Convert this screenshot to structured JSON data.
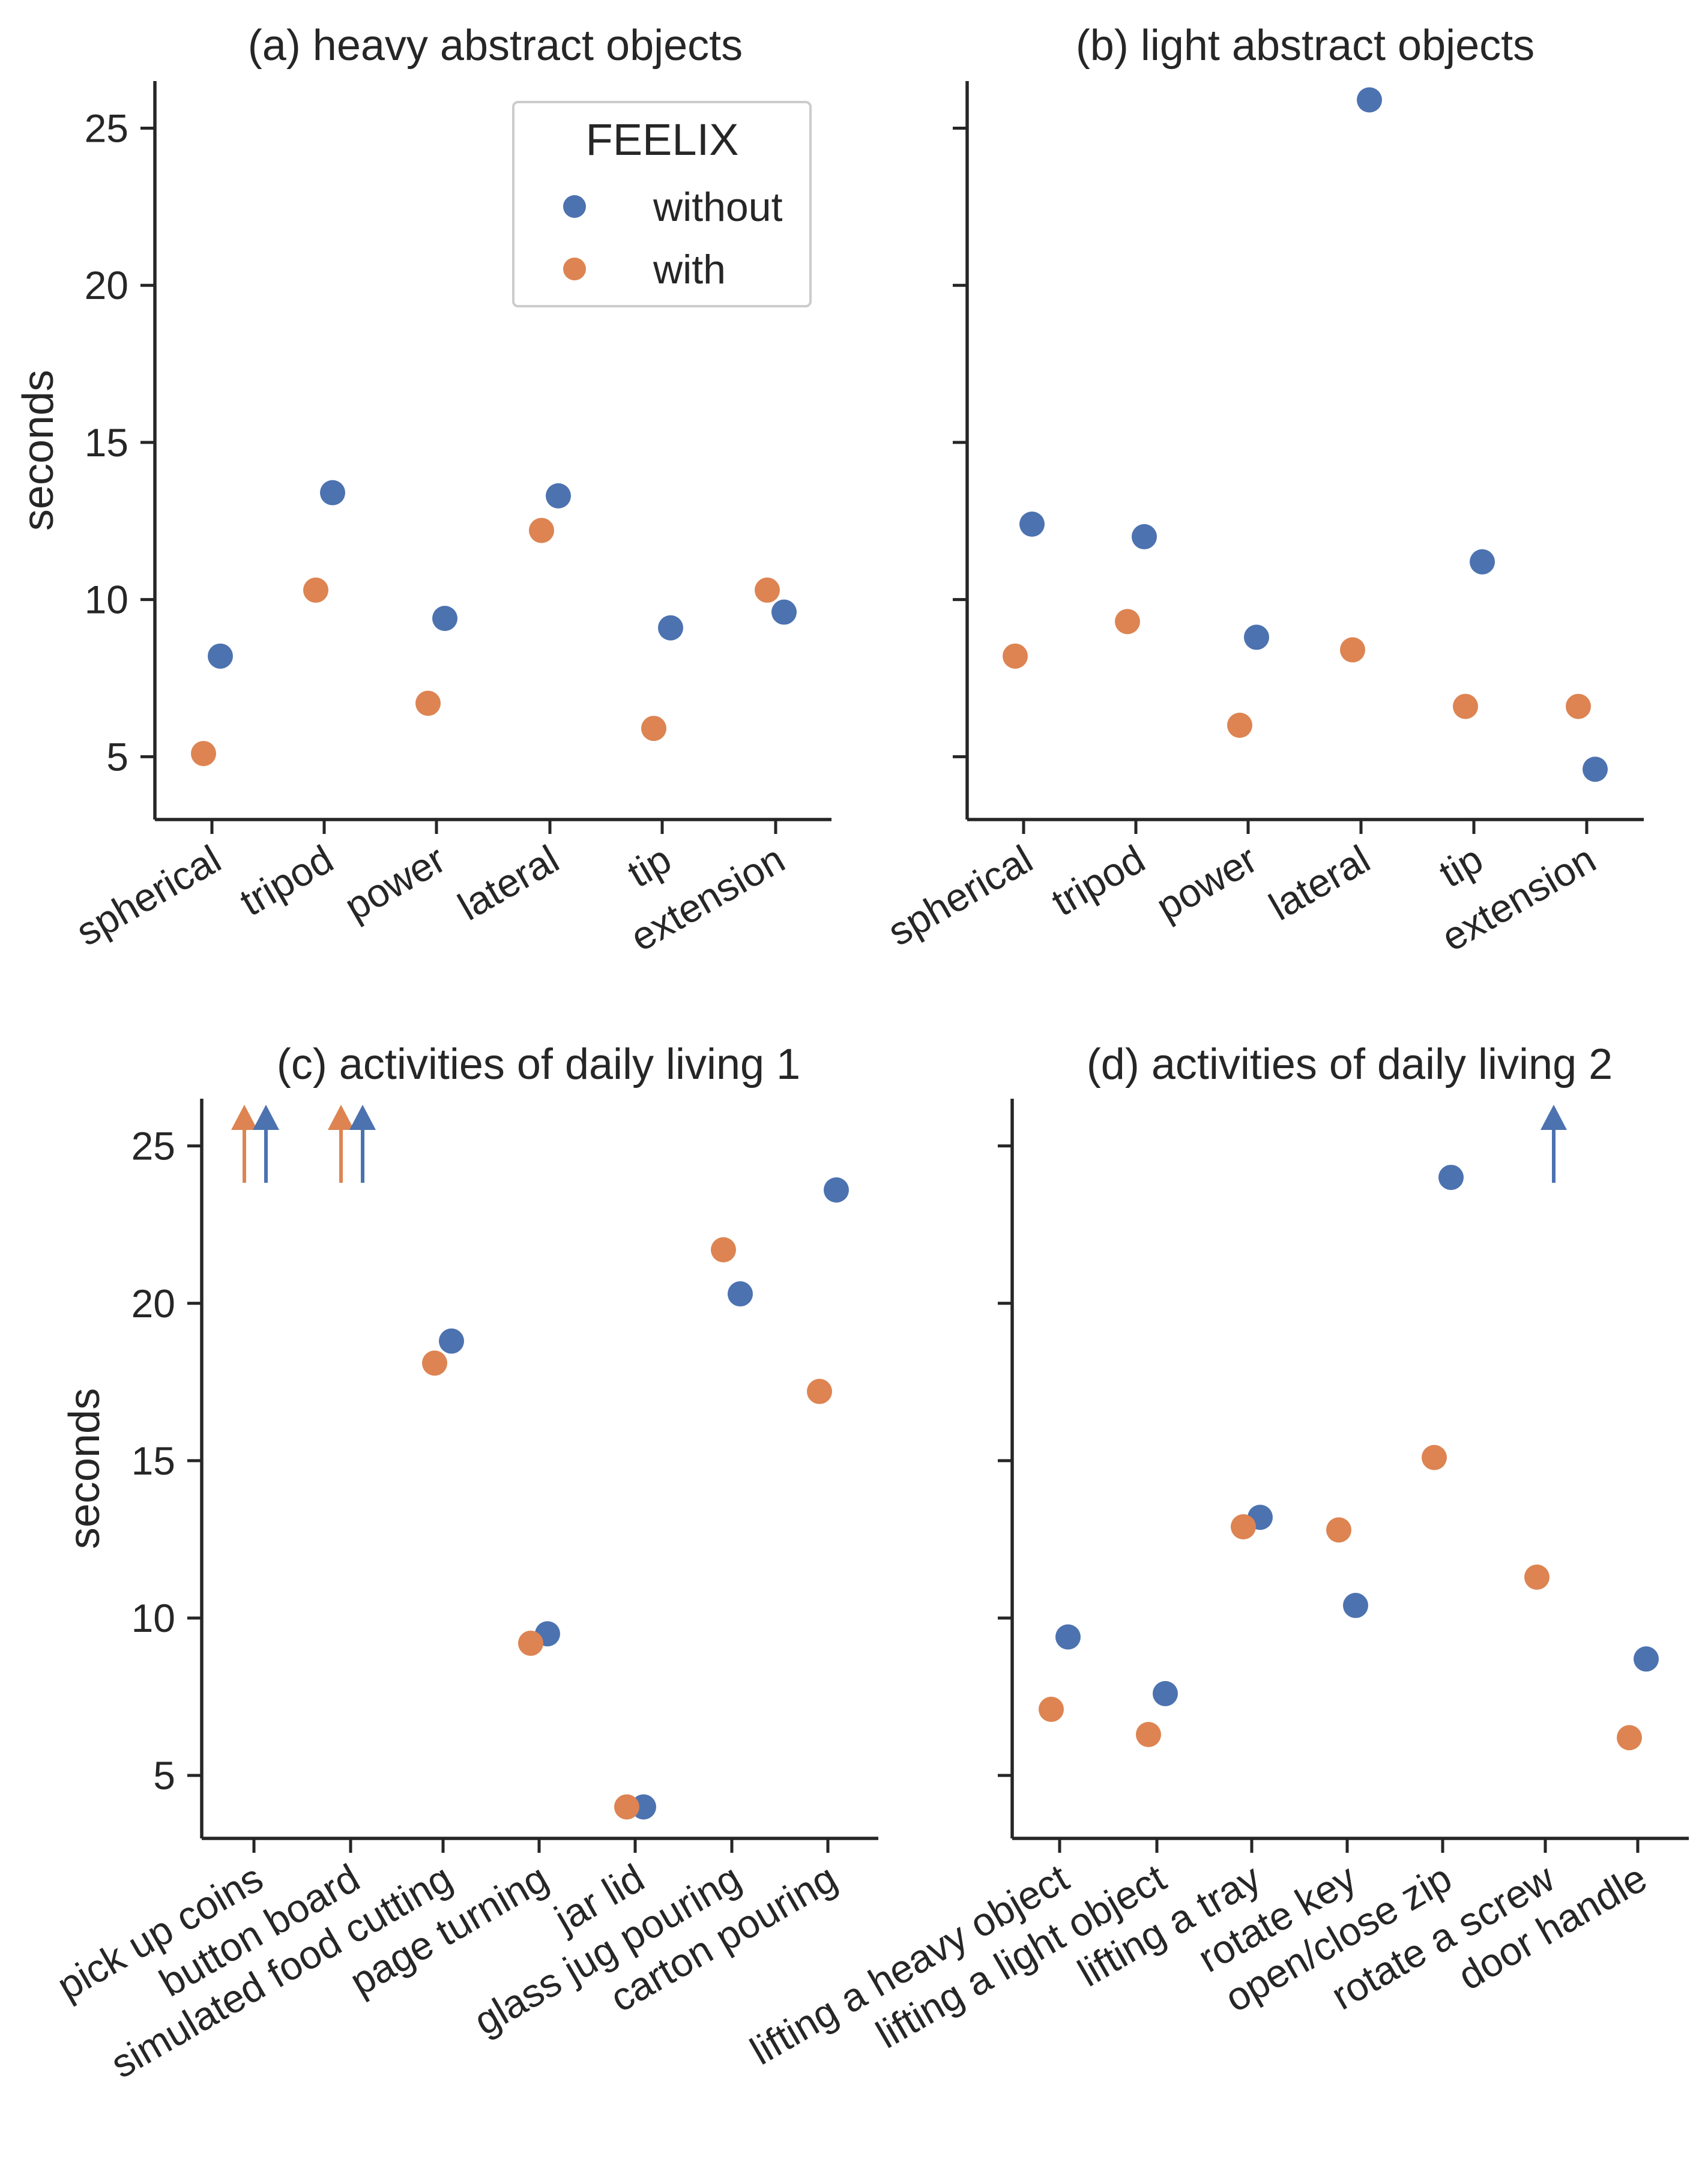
{
  "colors": {
    "without": "#4c72b0",
    "with": "#dd8452",
    "axis": "#262626"
  },
  "legend": {
    "title": "FEELIX",
    "entries": [
      "without",
      "with"
    ]
  },
  "y_label": "seconds",
  "chart_data": [
    {
      "type": "scatter",
      "title": "(a) heavy abstract objects",
      "categories": [
        "spherical",
        "tripod",
        "power",
        "lateral",
        "tip",
        "extension"
      ],
      "ylim": [
        3,
        26.5
      ],
      "yticks": [
        5,
        10,
        15,
        20,
        25
      ],
      "series": [
        {
          "name": "without",
          "values": [
            8.2,
            13.4,
            9.4,
            13.3,
            9.1,
            9.6
          ]
        },
        {
          "name": "with",
          "values": [
            5.1,
            10.3,
            6.7,
            12.2,
            5.9,
            10.3
          ]
        }
      ],
      "off_scale": []
    },
    {
      "type": "scatter",
      "title": "(b) light abstract objects",
      "categories": [
        "spherical",
        "tripod",
        "power",
        "lateral",
        "tip",
        "extension"
      ],
      "ylim": [
        3,
        26.5
      ],
      "yticks": [
        5,
        10,
        15,
        20,
        25
      ],
      "series": [
        {
          "name": "without",
          "values": [
            12.4,
            12.0,
            8.8,
            25.9,
            11.2,
            4.6
          ]
        },
        {
          "name": "with",
          "values": [
            8.2,
            9.3,
            6.0,
            8.4,
            6.6,
            6.6
          ]
        }
      ],
      "off_scale": []
    },
    {
      "type": "scatter",
      "title": "(c) activities of daily living 1",
      "categories": [
        "pick up coins",
        "button board",
        "simulated food cutting",
        "page turning",
        "jar lid",
        "glass jug pouring",
        "carton pouring"
      ],
      "ylim": [
        3,
        26.5
      ],
      "yticks": [
        5,
        10,
        15,
        20,
        25
      ],
      "series": [
        {
          "name": "without",
          "values": [
            null,
            null,
            18.8,
            9.5,
            4.0,
            20.3,
            23.6
          ]
        },
        {
          "name": "with",
          "values": [
            null,
            null,
            18.1,
            9.2,
            4.0,
            21.7,
            17.2
          ]
        }
      ],
      "off_scale": [
        {
          "category": "pick up coins",
          "series": "with"
        },
        {
          "category": "pick up coins",
          "series": "without"
        },
        {
          "category": "button board",
          "series": "with"
        },
        {
          "category": "button board",
          "series": "without"
        }
      ]
    },
    {
      "type": "scatter",
      "title": "(d) activities of daily living 2",
      "categories": [
        "lifting a heavy object",
        "lifting a light object",
        "lifting a tray",
        "rotate key",
        "open/close zip",
        "rotate a screw",
        "door handle"
      ],
      "ylim": [
        3,
        26.5
      ],
      "yticks": [
        5,
        10,
        15,
        20,
        25
      ],
      "series": [
        {
          "name": "without",
          "values": [
            9.4,
            7.6,
            13.2,
            10.4,
            24.0,
            null,
            8.7
          ]
        },
        {
          "name": "with",
          "values": [
            7.1,
            6.3,
            12.9,
            12.8,
            15.1,
            11.3,
            6.2
          ]
        }
      ],
      "off_scale": [
        {
          "category": "rotate a screw",
          "series": "without"
        }
      ]
    }
  ]
}
